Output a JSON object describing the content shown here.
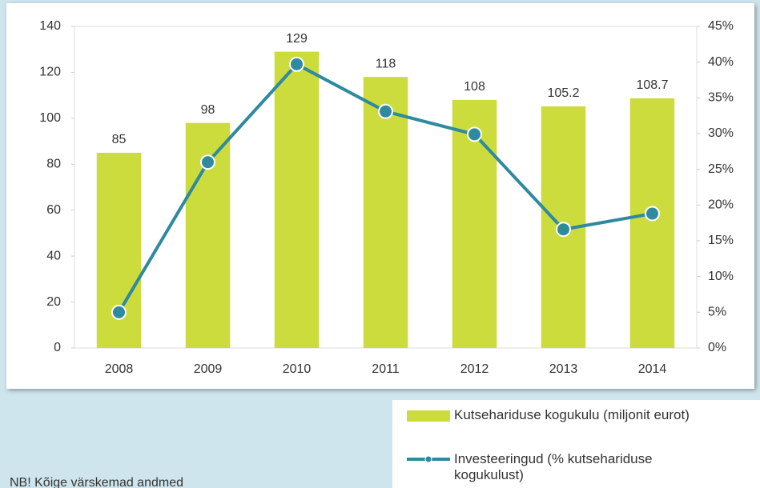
{
  "chart_data": {
    "type": "bar",
    "categories": [
      "2008",
      "2009",
      "2010",
      "2011",
      "2012",
      "2013",
      "2014"
    ],
    "series": [
      {
        "name": "Kutsehariduse kogukulu (miljonit eurot)",
        "type": "bar",
        "color": "#cbdc3c",
        "values": [
          85,
          98,
          129,
          118,
          108,
          105.2,
          108.7
        ]
      },
      {
        "name": "Investeeringud (% kutsehariduse kogukulust)",
        "type": "line",
        "axis": "y2",
        "color": "#2f8a9f",
        "values": [
          5,
          26,
          39.7,
          33.1,
          29.9,
          16.6,
          18.8
        ]
      }
    ],
    "ylim": [
      0,
      140
    ],
    "yticks": [
      0,
      20,
      40,
      60,
      80,
      100,
      120,
      140
    ],
    "y2lim": [
      0,
      45
    ],
    "y2ticks": [
      {
        "value": 0,
        "label": "0%"
      },
      {
        "value": 5,
        "label": "5%"
      },
      {
        "value": 10,
        "label": "10%"
      },
      {
        "value": 15,
        "label": "15%"
      },
      {
        "value": 20,
        "label": "20%"
      },
      {
        "value": 25,
        "label": "25%"
      },
      {
        "value": 30,
        "label": "30%"
      },
      {
        "value": 35,
        "label": "35%"
      },
      {
        "value": 40,
        "label": "40%"
      },
      {
        "value": 45,
        "label": "45%"
      }
    ],
    "data_labels": true,
    "legend": "bottom-right",
    "note": "NB! Kõige värskemad andmed"
  }
}
